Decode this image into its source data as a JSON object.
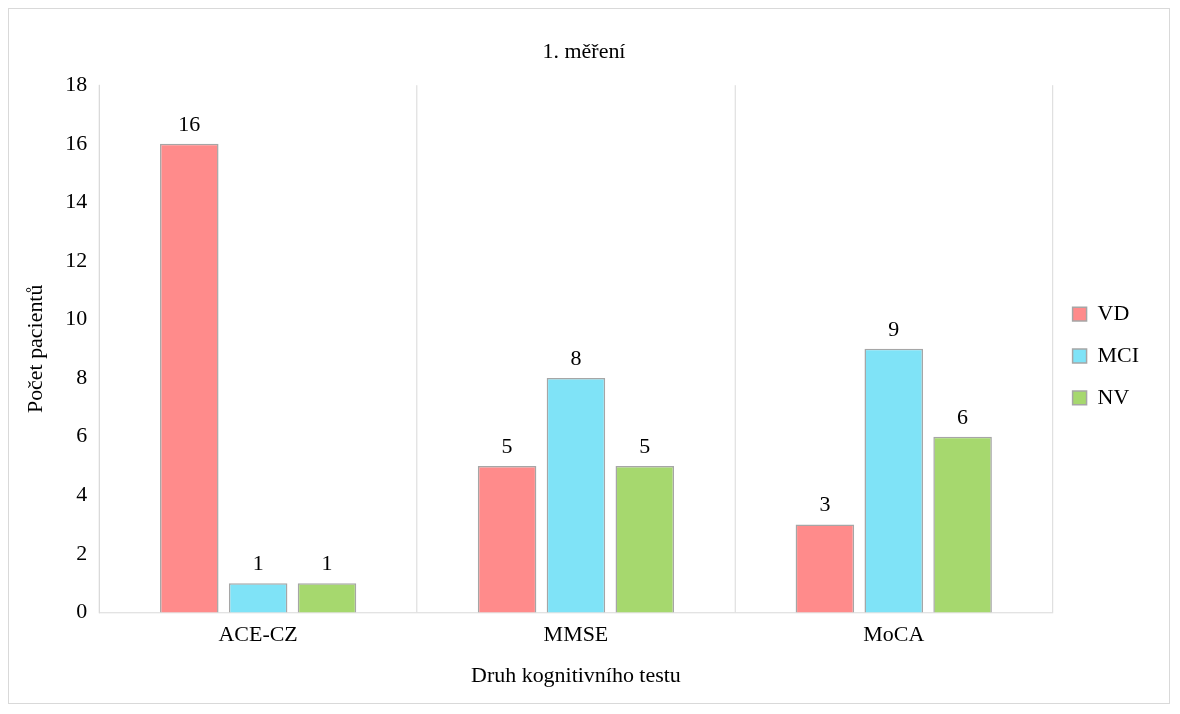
{
  "chart_data": {
    "type": "bar",
    "title": "1. měření",
    "xlabel": "Druh kognitivního testu",
    "ylabel": "Počet pacientů",
    "categories": [
      "ACE-CZ",
      "MMSE",
      "MoCA"
    ],
    "series": [
      {
        "name": "VD",
        "color": "#ff8b8b",
        "values": [
          16,
          5,
          3
        ]
      },
      {
        "name": "MCI",
        "color": "#7fe3f7",
        "values": [
          1,
          8,
          9
        ]
      },
      {
        "name": "NV",
        "color": "#a6d86e",
        "values": [
          1,
          5,
          6
        ]
      }
    ],
    "ylim": [
      0,
      18
    ],
    "yticks": [
      0,
      2,
      4,
      6,
      8,
      10,
      12,
      14,
      16,
      18
    ],
    "grid": "x",
    "legend": "right",
    "data_labels": true
  }
}
